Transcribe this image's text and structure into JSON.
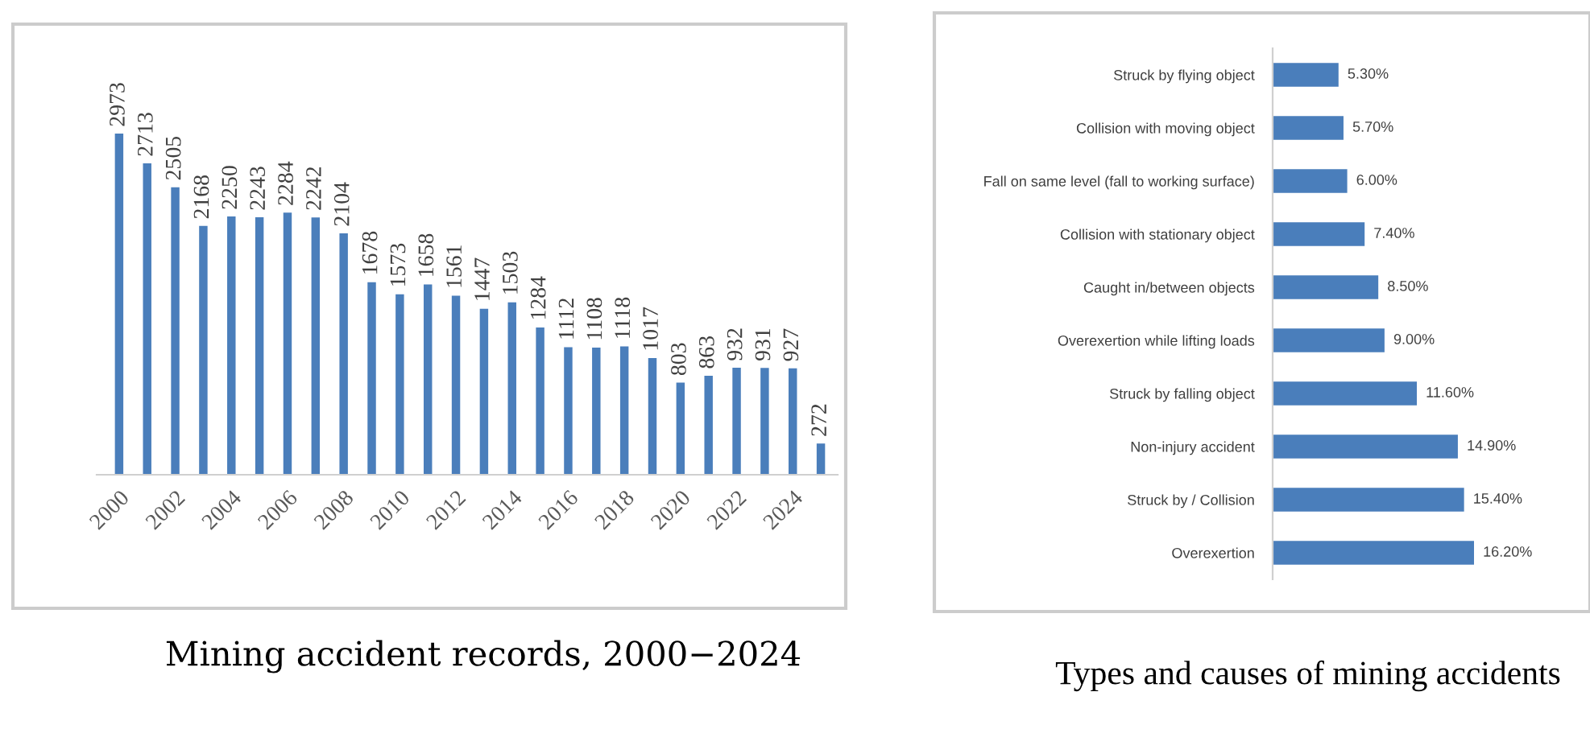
{
  "chart_data": [
    {
      "type": "bar",
      "categories": [
        "2000",
        null,
        "2002",
        null,
        "2004",
        null,
        "2006",
        null,
        "2008",
        null,
        "2010",
        null,
        "2012",
        null,
        "2014",
        null,
        "2016",
        null,
        "2018",
        null,
        "2020",
        null,
        "2022",
        null,
        "2024",
        null
      ],
      "values": [
        2973,
        2713,
        2505,
        2168,
        2250,
        2243,
        2284,
        2242,
        2104,
        1678,
        1573,
        1658,
        1561,
        1447,
        1503,
        1284,
        1112,
        1108,
        1118,
        1017,
        803,
        863,
        932,
        931,
        927,
        272
      ],
      "color": "#4a7ebb",
      "data_labels": true,
      "tick_labels": "x",
      "grid": false,
      "annotations": [
        "Mining accident records, 2000−2024"
      ]
    },
    {
      "type": "bar",
      "orientation": "horizontal",
      "categories": [
        "Struck by flying object",
        "Collision with moving object",
        "Fall on same level (fall to working surface)",
        "Collision with stationary object",
        "Caught in/between objects",
        "Overexertion while lifting loads",
        "Struck by falling object",
        "Non-injury accident",
        "Struck by / Collision",
        "Overexertion"
      ],
      "values": [
        5.3,
        5.7,
        6.0,
        7.4,
        8.5,
        9.0,
        11.6,
        14.9,
        15.4,
        16.2
      ],
      "value_labels": [
        "5.30%",
        "5.70%",
        "6.00%",
        "7.40%",
        "8.50%",
        "9.00%",
        "11.60%",
        "14.90%",
        "15.40%",
        "16.20%"
      ],
      "color": "#4a7ebb",
      "tick_labels": "y",
      "grid": false,
      "annotations": [
        "Types and causes of mining accidents"
      ]
    }
  ]
}
